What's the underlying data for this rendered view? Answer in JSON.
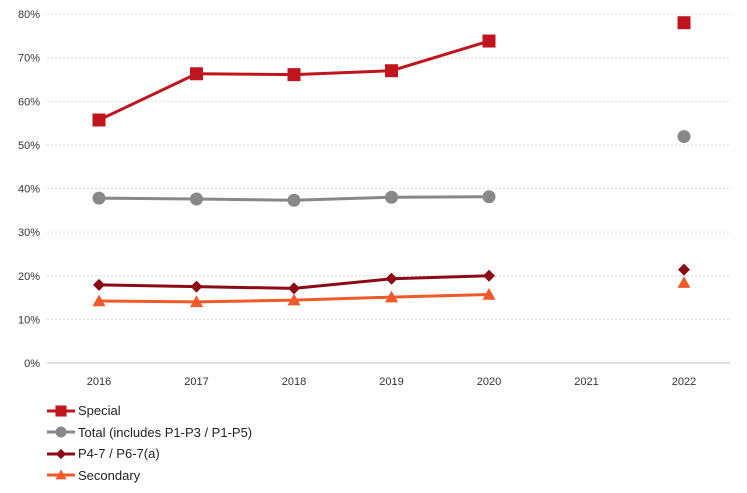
{
  "chart_data": {
    "type": "line",
    "categories": [
      "2016",
      "2017",
      "2018",
      "2019",
      "2020",
      "2021",
      "2022"
    ],
    "ylim": [
      0,
      80
    ],
    "yticks": [
      "0%",
      "10%",
      "20%",
      "30%",
      "40%",
      "50%",
      "60%",
      "70%",
      "80%"
    ],
    "grid": true,
    "legend_position": "bottom-left",
    "series": [
      {
        "name": "Special",
        "marker": "square",
        "color": "#c0141f",
        "values": [
          55.7,
          66.3,
          66.1,
          67.0,
          73.8,
          null,
          78.0
        ]
      },
      {
        "name": "Total (includes P1-P3 / P1-P5)",
        "marker": "circle",
        "color": "#888888",
        "values": [
          37.8,
          37.6,
          37.3,
          38.0,
          38.1,
          null,
          51.9
        ]
      },
      {
        "name": "P4-7 / P6-7(a)",
        "marker": "diamond",
        "color": "#8b0a14",
        "values": [
          17.9,
          17.5,
          17.1,
          19.3,
          20.0,
          null,
          21.4
        ]
      },
      {
        "name": "Secondary",
        "marker": "triangle",
        "color": "#f05a28",
        "values": [
          14.2,
          14.0,
          14.4,
          15.1,
          15.7,
          null,
          18.4
        ]
      }
    ]
  }
}
